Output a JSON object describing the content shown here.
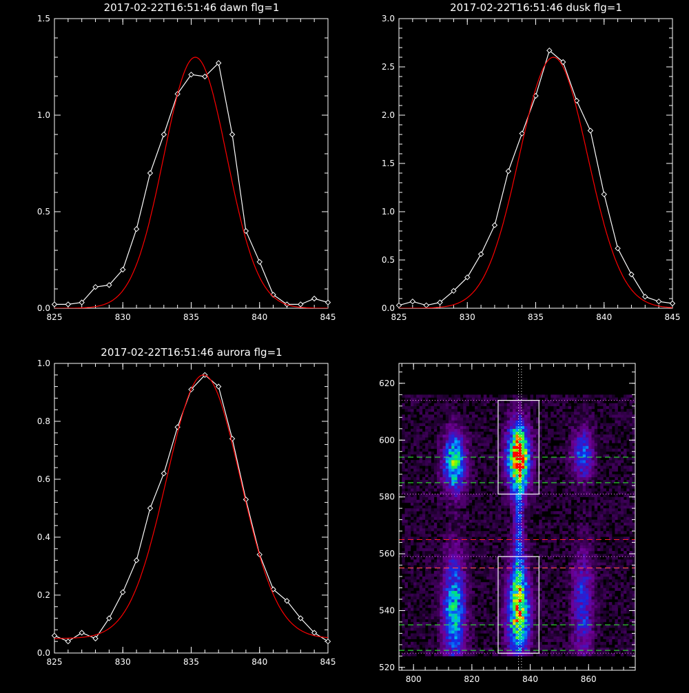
{
  "chart_data": [
    {
      "type": "line",
      "title": "2017-02-22T16:51:46 dawn flg=1",
      "xlim": [
        825,
        845
      ],
      "ylim": [
        0,
        1.5
      ],
      "x_ticks": [
        "825",
        "830",
        "835",
        "840",
        "845"
      ],
      "y_ticks": [
        "0.0",
        "0.5",
        "1.0",
        "1.5"
      ],
      "series": [
        {
          "marker": "diamond",
          "color": "#ffffff",
          "x": [
            825,
            826,
            827,
            828,
            829,
            830,
            831,
            832,
            833,
            834,
            835,
            836,
            837,
            838,
            839,
            840,
            841,
            842,
            843,
            844,
            845
          ],
          "y": [
            0.02,
            0.02,
            0.03,
            0.11,
            0.12,
            0.2,
            0.41,
            0.7,
            0.9,
            1.11,
            1.21,
            1.2,
            1.27,
            0.9,
            0.4,
            0.24,
            0.07,
            0.02,
            0.02,
            0.05,
            0.03
          ]
        },
        {
          "marker": "none",
          "color": "#ff0000",
          "fit": "gaussian",
          "amplitude": 1.3,
          "center": 835.3,
          "sigma": 2.3,
          "offset": 0.0
        }
      ]
    },
    {
      "type": "line",
      "title": "2017-02-22T16:51:46 dusk flg=1",
      "xlim": [
        825,
        845
      ],
      "ylim": [
        0,
        3.0
      ],
      "x_ticks": [
        "825",
        "830",
        "835",
        "840",
        "845"
      ],
      "y_ticks": [
        "0.0",
        "0.5",
        "1.0",
        "1.5",
        "2.0",
        "2.5",
        "3.0"
      ],
      "series": [
        {
          "marker": "diamond",
          "color": "#ffffff",
          "x": [
            825,
            826,
            827,
            828,
            829,
            830,
            831,
            832,
            833,
            834,
            835,
            836,
            837,
            838,
            839,
            840,
            841,
            842,
            843,
            844,
            845
          ],
          "y": [
            0.03,
            0.07,
            0.03,
            0.06,
            0.18,
            0.32,
            0.56,
            0.86,
            1.42,
            1.81,
            2.2,
            2.67,
            2.55,
            2.15,
            1.84,
            1.18,
            0.62,
            0.35,
            0.12,
            0.07,
            0.05
          ]
        },
        {
          "marker": "none",
          "color": "#ff0000",
          "fit": "gaussian",
          "amplitude": 2.6,
          "center": 836.3,
          "sigma": 2.5,
          "offset": 0.0
        }
      ]
    },
    {
      "type": "line",
      "title": "2017-02-22T16:51:46 aurora flg=1",
      "xlim": [
        825,
        845
      ],
      "ylim": [
        0,
        1.0
      ],
      "x_ticks": [
        "825",
        "830",
        "835",
        "840",
        "845"
      ],
      "y_ticks": [
        "0.0",
        "0.2",
        "0.4",
        "0.6",
        "0.8",
        "1.0"
      ],
      "series": [
        {
          "marker": "diamond",
          "color": "#ffffff",
          "x": [
            825,
            826,
            827,
            828,
            829,
            830,
            831,
            832,
            833,
            834,
            835,
            836,
            837,
            838,
            839,
            840,
            841,
            842,
            843,
            844,
            845
          ],
          "y": [
            0.06,
            0.04,
            0.07,
            0.05,
            0.12,
            0.21,
            0.32,
            0.5,
            0.62,
            0.78,
            0.91,
            0.96,
            0.92,
            0.74,
            0.53,
            0.34,
            0.22,
            0.18,
            0.12,
            0.07,
            0.04
          ]
        },
        {
          "marker": "none",
          "color": "#ff0000",
          "fit": "gaussian",
          "amplitude": 0.91,
          "center": 835.9,
          "sigma": 2.7,
          "offset": 0.05
        }
      ]
    },
    {
      "type": "heatmap",
      "title": "",
      "xlim": [
        795,
        876
      ],
      "ylim": [
        519,
        627
      ],
      "x_ticks": [
        "800",
        "820",
        "840",
        "860"
      ],
      "y_ticks": [
        "520",
        "540",
        "560",
        "580",
        "600",
        "620"
      ],
      "colormap": "rainbow",
      "sources": [
        {
          "x": 836,
          "y": 594,
          "sx": 2.6,
          "sy": 8,
          "amp": 1.0
        },
        {
          "x": 836,
          "y": 540,
          "sx": 2.6,
          "sy": 11,
          "amp": 0.78
        },
        {
          "x": 836,
          "y": 568,
          "sx": 1.2,
          "sy": 14,
          "amp": 0.3
        },
        {
          "x": 814,
          "y": 592,
          "sx": 2.6,
          "sy": 7,
          "amp": 0.62
        },
        {
          "x": 814,
          "y": 540,
          "sx": 2.6,
          "sy": 13,
          "amp": 0.55
        },
        {
          "x": 858,
          "y": 595,
          "sx": 2.5,
          "sy": 6,
          "amp": 0.38
        },
        {
          "x": 858,
          "y": 542,
          "sx": 2.5,
          "sy": 14,
          "amp": 0.3
        }
      ],
      "boxes": [
        {
          "x0": 829,
          "x1": 843,
          "y0": 581,
          "y1": 614,
          "color": "#ffffff"
        },
        {
          "x0": 829,
          "x1": 843,
          "y0": 525,
          "y1": 559,
          "color": "#ffffff"
        }
      ],
      "vlines": [
        {
          "x": 836,
          "color": "#ffffff",
          "style": "dotted"
        },
        {
          "x": 837,
          "color": "#ffffff",
          "style": "dotted"
        }
      ],
      "hlines": [
        {
          "y": 614,
          "color": "#ff80ff",
          "style": "dotted"
        },
        {
          "y": 594,
          "color": "#33ff33",
          "style": "dashed"
        },
        {
          "y": 585,
          "color": "#ffffff",
          "style": "dashed"
        },
        {
          "y": 585,
          "color": "#33ff33",
          "style": "dashed"
        },
        {
          "y": 581,
          "color": "#ff80ff",
          "style": "dotted"
        },
        {
          "y": 565,
          "color": "#ff2020",
          "style": "dashed"
        },
        {
          "y": 559,
          "color": "#ff80ff",
          "style": "dotted"
        },
        {
          "y": 555,
          "color": "#ffffff",
          "style": "dashed"
        },
        {
          "y": 555,
          "color": "#ff3030",
          "style": "dashed"
        },
        {
          "y": 535,
          "color": "#33ff33",
          "style": "dashed"
        },
        {
          "y": 526,
          "color": "#33ff33",
          "style": "dashed"
        },
        {
          "y": 525,
          "color": "#ff80ff",
          "style": "dotted"
        }
      ]
    }
  ]
}
